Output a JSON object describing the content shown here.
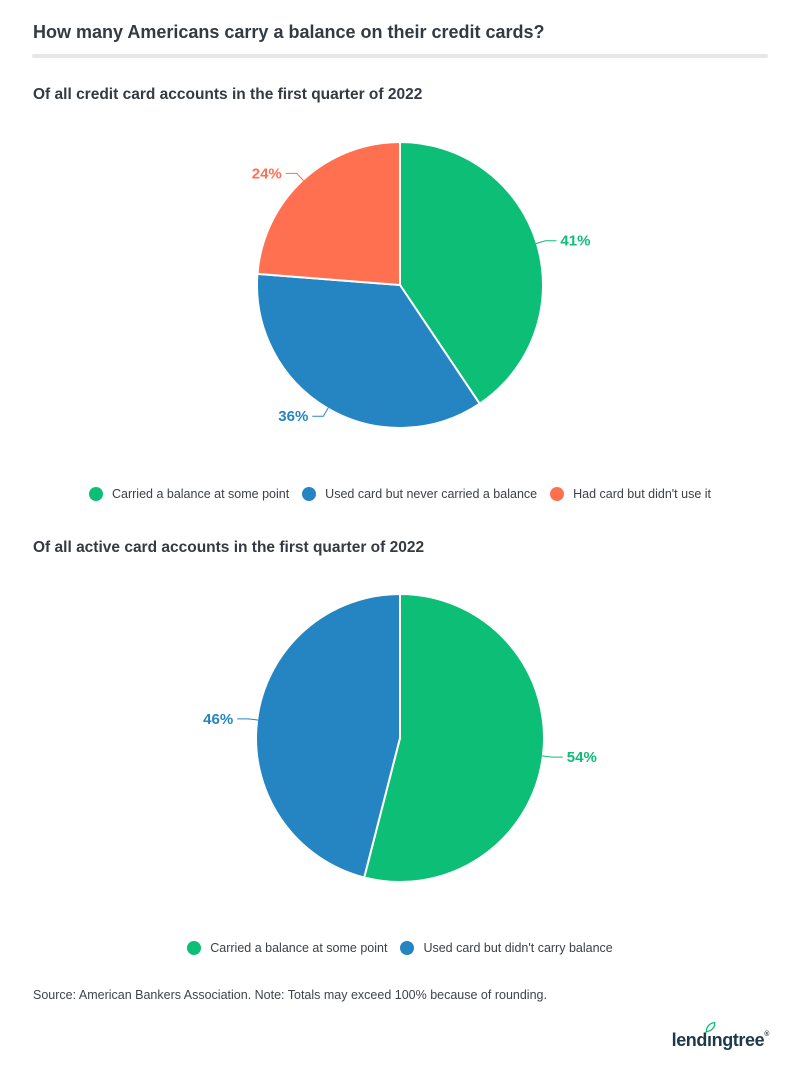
{
  "header": {
    "title": "How many Americans carry a balance on their credit cards?"
  },
  "chart_data": [
    {
      "type": "pie",
      "title": "Of all credit card accounts in the first quarter of 2022",
      "start_angle": 0,
      "direction": "clockwise",
      "legend_position": "bottom",
      "slices": [
        {
          "name": "Carried a balance at some point",
          "value": 41,
          "label": "41%",
          "color": "#0dbe76"
        },
        {
          "name": "Used card but never carried a balance",
          "value": 36,
          "label": "36%",
          "color": "#2585c3"
        },
        {
          "name": "Had card but didn't use it",
          "value": 24,
          "label": "24%",
          "color": "#ff7050"
        }
      ]
    },
    {
      "type": "pie",
      "title": "Of all active card accounts in the first quarter of 2022",
      "start_angle": 0,
      "direction": "clockwise",
      "legend_position": "bottom",
      "slices": [
        {
          "name": "Carried a balance at some point",
          "value": 54,
          "label": "54%",
          "color": "#0dbe76"
        },
        {
          "name": "Used card but didn't carry balance",
          "value": 46,
          "label": "46%",
          "color": "#2585c3"
        }
      ]
    }
  ],
  "footer": {
    "source_note": "Source: American Bankers Association. Note: Totals may exceed 100% because of rounding.",
    "logo": {
      "pre": "lend",
      "i": "ı",
      "post": "ngtree",
      "reg": "®"
    },
    "logo_text": "lendingtree"
  },
  "colors": {
    "green": "#0dbe76",
    "blue": "#2585c3",
    "orange": "#ff7050",
    "text_dark": "#343a41",
    "legend_text": "#3c4147",
    "divider": "#e7e7e7",
    "logo_navy": "#1e3a4a",
    "leaf_green": "#08c177"
  }
}
